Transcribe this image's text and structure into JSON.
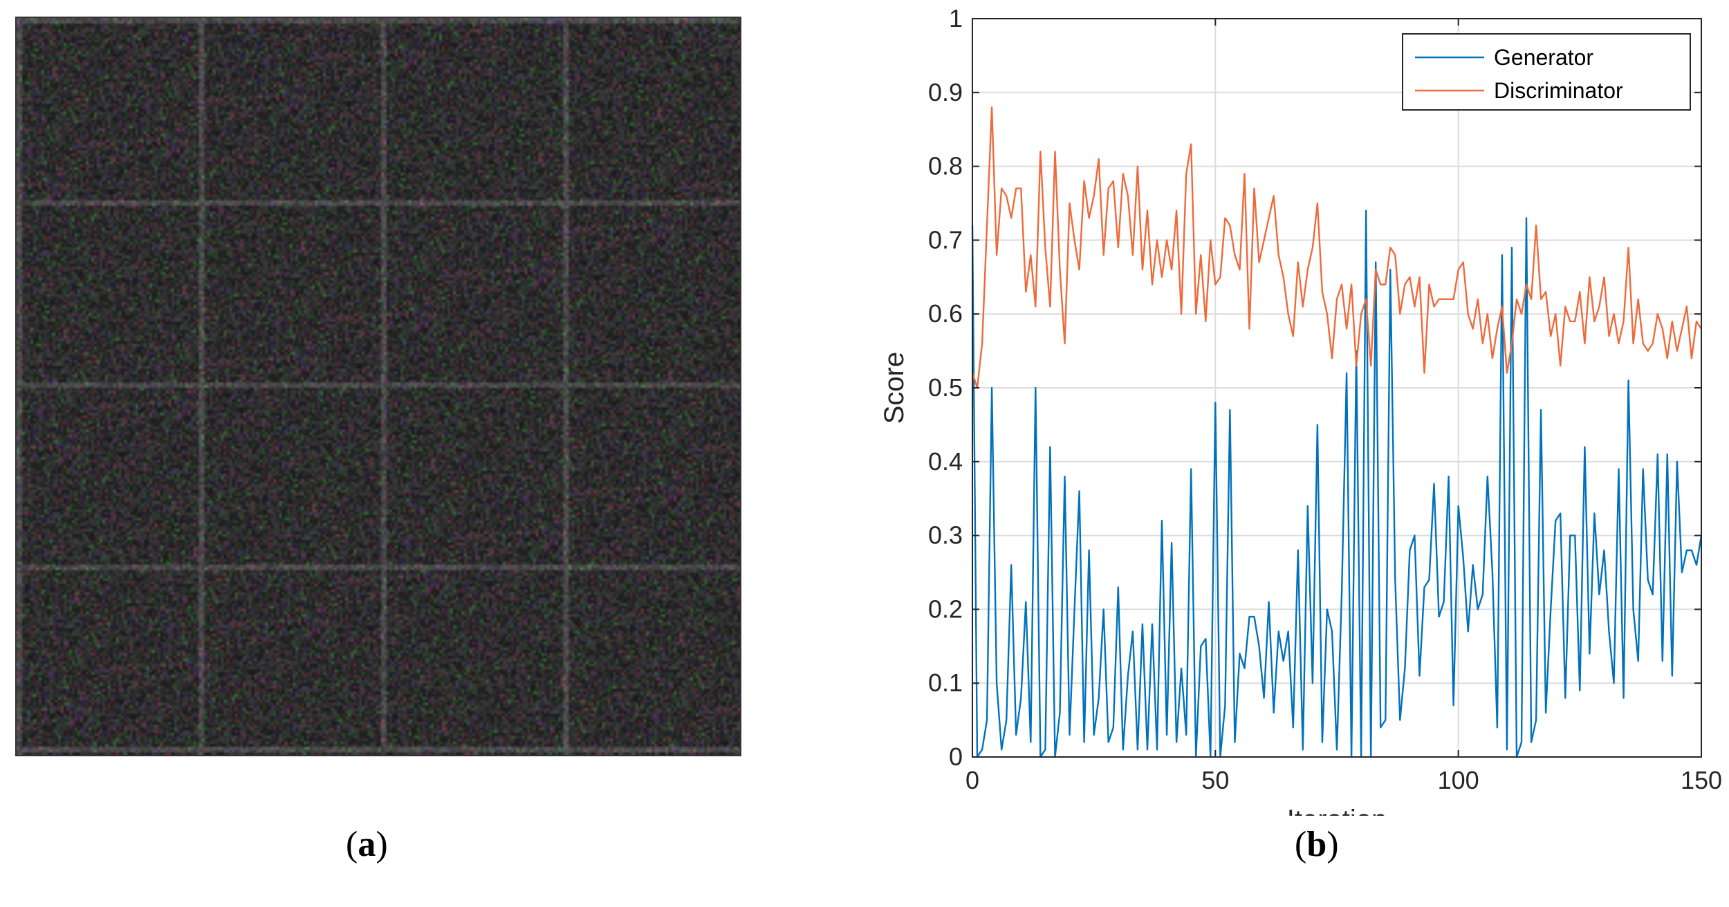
{
  "panel_a": {
    "caption_label": "a"
  },
  "panel_b": {
    "caption_label": "b"
  },
  "chart_data": {
    "type": "line",
    "xlabel": "Iteration",
    "ylabel": "Score",
    "xlim": [
      0,
      150
    ],
    "ylim": [
      0,
      1
    ],
    "xticks": [
      0,
      50,
      100,
      150
    ],
    "yticks": [
      0,
      0.1,
      0.2,
      0.3,
      0.4,
      0.5,
      0.6,
      0.7,
      0.8,
      0.9,
      1
    ],
    "grid": true,
    "legend_position": "top-right",
    "series": [
      {
        "name": "Generator",
        "color": "#0072BD",
        "x": [
          0,
          1,
          2,
          3,
          4,
          5,
          6,
          7,
          8,
          9,
          10,
          11,
          12,
          13,
          14,
          15,
          16,
          17,
          18,
          19,
          20,
          21,
          22,
          23,
          24,
          25,
          26,
          27,
          28,
          29,
          30,
          31,
          32,
          33,
          34,
          35,
          36,
          37,
          38,
          39,
          40,
          41,
          42,
          43,
          44,
          45,
          46,
          47,
          48,
          49,
          50,
          51,
          52,
          53,
          54,
          55,
          56,
          57,
          58,
          59,
          60,
          61,
          62,
          63,
          64,
          65,
          66,
          67,
          68,
          69,
          70,
          71,
          72,
          73,
          74,
          75,
          76,
          77,
          78,
          79,
          80,
          81,
          82,
          83,
          84,
          85,
          86,
          87,
          88,
          89,
          90,
          91,
          92,
          93,
          94,
          95,
          96,
          97,
          98,
          99,
          100,
          101,
          102,
          103,
          104,
          105,
          106,
          107,
          108,
          109,
          110,
          111,
          112,
          113,
          114,
          115,
          116,
          117,
          118,
          119,
          120,
          121,
          122,
          123,
          124,
          125,
          126,
          127,
          128,
          129,
          130,
          131,
          132,
          133,
          134,
          135,
          136,
          137,
          138,
          139,
          140,
          141,
          142,
          143,
          144,
          145,
          146,
          147,
          148,
          149,
          150
        ],
        "values": [
          0.72,
          0.0,
          0.01,
          0.05,
          0.5,
          0.1,
          0.01,
          0.05,
          0.26,
          0.03,
          0.08,
          0.21,
          0.02,
          0.5,
          0.0,
          0.01,
          0.42,
          0.0,
          0.06,
          0.38,
          0.03,
          0.2,
          0.36,
          0.02,
          0.28,
          0.03,
          0.08,
          0.2,
          0.02,
          0.04,
          0.23,
          0.01,
          0.11,
          0.17,
          0.01,
          0.18,
          0.01,
          0.18,
          0.01,
          0.32,
          0.03,
          0.29,
          0.02,
          0.12,
          0.03,
          0.39,
          0.0,
          0.15,
          0.16,
          0.0,
          0.48,
          0.0,
          0.07,
          0.47,
          0.02,
          0.14,
          0.12,
          0.19,
          0.19,
          0.15,
          0.08,
          0.21,
          0.06,
          0.17,
          0.13,
          0.17,
          0.04,
          0.28,
          0.01,
          0.34,
          0.1,
          0.45,
          0.02,
          0.2,
          0.17,
          0.01,
          0.22,
          0.52,
          0.0,
          0.55,
          0.0,
          0.74,
          0.0,
          0.67,
          0.04,
          0.05,
          0.66,
          0.24,
          0.05,
          0.12,
          0.28,
          0.3,
          0.11,
          0.23,
          0.24,
          0.37,
          0.19,
          0.21,
          0.38,
          0.07,
          0.34,
          0.27,
          0.17,
          0.26,
          0.2,
          0.22,
          0.38,
          0.25,
          0.04,
          0.68,
          0.01,
          0.69,
          0.0,
          0.02,
          0.73,
          0.02,
          0.05,
          0.47,
          0.06,
          0.2,
          0.32,
          0.33,
          0.08,
          0.3,
          0.3,
          0.09,
          0.42,
          0.14,
          0.33,
          0.22,
          0.28,
          0.17,
          0.1,
          0.39,
          0.08,
          0.51,
          0.2,
          0.13,
          0.39,
          0.24,
          0.22,
          0.41,
          0.13,
          0.41,
          0.11,
          0.4,
          0.25,
          0.28,
          0.28,
          0.26,
          0.3
        ]
      },
      {
        "name": "Discriminator",
        "color": "#EF6A3A",
        "x": [
          0,
          1,
          2,
          3,
          4,
          5,
          6,
          7,
          8,
          9,
          10,
          11,
          12,
          13,
          14,
          15,
          16,
          17,
          18,
          19,
          20,
          21,
          22,
          23,
          24,
          25,
          26,
          27,
          28,
          29,
          30,
          31,
          32,
          33,
          34,
          35,
          36,
          37,
          38,
          39,
          40,
          41,
          42,
          43,
          44,
          45,
          46,
          47,
          48,
          49,
          50,
          51,
          52,
          53,
          54,
          55,
          56,
          57,
          58,
          59,
          60,
          61,
          62,
          63,
          64,
          65,
          66,
          67,
          68,
          69,
          70,
          71,
          72,
          73,
          74,
          75,
          76,
          77,
          78,
          79,
          80,
          81,
          82,
          83,
          84,
          85,
          86,
          87,
          88,
          89,
          90,
          91,
          92,
          93,
          94,
          95,
          96,
          97,
          98,
          99,
          100,
          101,
          102,
          103,
          104,
          105,
          106,
          107,
          108,
          109,
          110,
          111,
          112,
          113,
          114,
          115,
          116,
          117,
          118,
          119,
          120,
          121,
          122,
          123,
          124,
          125,
          126,
          127,
          128,
          129,
          130,
          131,
          132,
          133,
          134,
          135,
          136,
          137,
          138,
          139,
          140,
          141,
          142,
          143,
          144,
          145,
          146,
          147,
          148,
          149,
          150
        ],
        "values": [
          0.52,
          0.5,
          0.56,
          0.72,
          0.88,
          0.68,
          0.77,
          0.76,
          0.73,
          0.77,
          0.77,
          0.63,
          0.68,
          0.61,
          0.82,
          0.69,
          0.61,
          0.82,
          0.66,
          0.56,
          0.75,
          0.7,
          0.66,
          0.78,
          0.73,
          0.76,
          0.81,
          0.68,
          0.77,
          0.78,
          0.69,
          0.79,
          0.76,
          0.68,
          0.8,
          0.66,
          0.74,
          0.64,
          0.7,
          0.65,
          0.7,
          0.66,
          0.74,
          0.6,
          0.79,
          0.83,
          0.6,
          0.68,
          0.59,
          0.7,
          0.64,
          0.65,
          0.73,
          0.72,
          0.68,
          0.66,
          0.79,
          0.58,
          0.77,
          0.67,
          0.7,
          0.73,
          0.76,
          0.68,
          0.65,
          0.6,
          0.57,
          0.67,
          0.61,
          0.66,
          0.69,
          0.75,
          0.63,
          0.6,
          0.54,
          0.62,
          0.64,
          0.58,
          0.64,
          0.53,
          0.6,
          0.62,
          0.53,
          0.66,
          0.64,
          0.64,
          0.69,
          0.68,
          0.6,
          0.64,
          0.65,
          0.61,
          0.65,
          0.52,
          0.64,
          0.61,
          0.62,
          0.62,
          0.62,
          0.62,
          0.66,
          0.67,
          0.6,
          0.58,
          0.62,
          0.56,
          0.6,
          0.54,
          0.58,
          0.61,
          0.52,
          0.56,
          0.62,
          0.6,
          0.64,
          0.62,
          0.72,
          0.62,
          0.63,
          0.57,
          0.6,
          0.53,
          0.61,
          0.59,
          0.59,
          0.63,
          0.56,
          0.65,
          0.59,
          0.61,
          0.65,
          0.57,
          0.6,
          0.56,
          0.59,
          0.69,
          0.56,
          0.62,
          0.56,
          0.55,
          0.56,
          0.6,
          0.58,
          0.54,
          0.59,
          0.55,
          0.58,
          0.61,
          0.54,
          0.59,
          0.58
        ]
      }
    ]
  }
}
